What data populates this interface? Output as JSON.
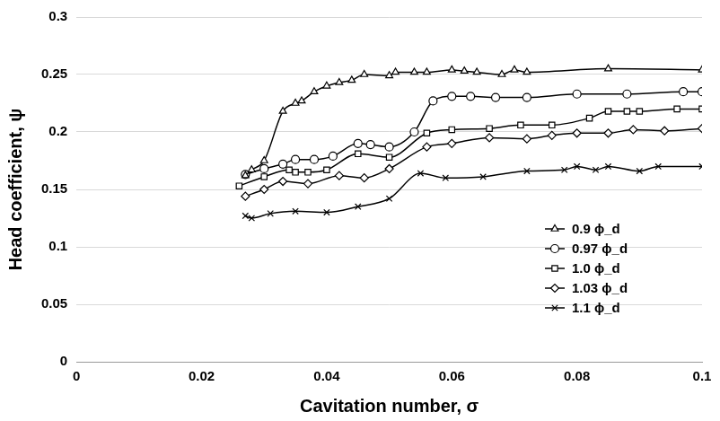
{
  "chart_data": {
    "type": "line",
    "x_label": "Cavitation number, σ",
    "y_label": "Head coefficient, ψ",
    "xlim": [
      0,
      0.1
    ],
    "xticks": [
      0,
      0.02,
      0.04,
      0.06,
      0.08,
      0.1
    ],
    "ylim": [
      0,
      0.3
    ],
    "yticks": [
      0,
      0.05,
      0.1,
      0.15,
      0.2,
      0.25,
      0.3
    ],
    "grid": "y",
    "legend": "lower right",
    "series": [
      {
        "name": "0.9 ϕ_d",
        "color": "#000000",
        "marker": "triangle",
        "line_style": "solid",
        "x": [
          0.027,
          0.028,
          0.03,
          0.033,
          0.035,
          0.036,
          0.038,
          0.04,
          0.042,
          0.044,
          0.046,
          0.05,
          0.051,
          0.054,
          0.056,
          0.06,
          0.062,
          0.064,
          0.068,
          0.07,
          0.072,
          0.085,
          0.1
        ],
        "values": [
          0.162,
          0.167,
          0.175,
          0.218,
          0.225,
          0.227,
          0.235,
          0.24,
          0.243,
          0.245,
          0.25,
          0.249,
          0.252,
          0.252,
          0.252,
          0.254,
          0.253,
          0.252,
          0.25,
          0.254,
          0.252,
          0.255,
          0.254
        ]
      },
      {
        "name": "0.97 ϕ_d",
        "color": "#000000",
        "marker": "circle",
        "line_style": "solid",
        "x": [
          0.027,
          0.03,
          0.033,
          0.035,
          0.038,
          0.041,
          0.045,
          0.047,
          0.05,
          0.054,
          0.057,
          0.06,
          0.063,
          0.067,
          0.072,
          0.08,
          0.088,
          0.097,
          0.1
        ],
        "values": [
          0.163,
          0.168,
          0.172,
          0.176,
          0.176,
          0.179,
          0.19,
          0.189,
          0.187,
          0.2,
          0.227,
          0.231,
          0.231,
          0.23,
          0.23,
          0.233,
          0.233,
          0.235,
          0.235
        ]
      },
      {
        "name": "1.0 ϕ_d",
        "color": "#000000",
        "marker": "square",
        "line_style": "solid",
        "x": [
          0.026,
          0.03,
          0.034,
          0.035,
          0.037,
          0.04,
          0.045,
          0.05,
          0.056,
          0.06,
          0.066,
          0.071,
          0.076,
          0.082,
          0.085,
          0.088,
          0.09,
          0.096,
          0.1
        ],
        "values": [
          0.153,
          0.161,
          0.167,
          0.165,
          0.165,
          0.167,
          0.181,
          0.178,
          0.199,
          0.202,
          0.203,
          0.206,
          0.206,
          0.212,
          0.218,
          0.218,
          0.218,
          0.22,
          0.22
        ]
      },
      {
        "name": "1.03 ϕ_d",
        "color": "#000000",
        "marker": "diamond",
        "line_style": "solid",
        "x": [
          0.027,
          0.03,
          0.033,
          0.037,
          0.042,
          0.046,
          0.05,
          0.056,
          0.06,
          0.066,
          0.072,
          0.076,
          0.08,
          0.085,
          0.089,
          0.094,
          0.1
        ],
        "values": [
          0.144,
          0.15,
          0.157,
          0.155,
          0.162,
          0.16,
          0.168,
          0.187,
          0.19,
          0.195,
          0.194,
          0.197,
          0.199,
          0.199,
          0.202,
          0.201,
          0.203
        ]
      },
      {
        "name": "1.1 ϕ_d",
        "color": "#000000",
        "marker": "x",
        "line_style": "solid",
        "x": [
          0.027,
          0.028,
          0.031,
          0.035,
          0.04,
          0.045,
          0.05,
          0.055,
          0.059,
          0.065,
          0.072,
          0.078,
          0.08,
          0.083,
          0.085,
          0.09,
          0.093,
          0.1
        ],
        "values": [
          0.127,
          0.125,
          0.129,
          0.131,
          0.13,
          0.135,
          0.142,
          0.164,
          0.16,
          0.161,
          0.166,
          0.167,
          0.17,
          0.167,
          0.17,
          0.166,
          0.17,
          0.17
        ]
      }
    ]
  }
}
